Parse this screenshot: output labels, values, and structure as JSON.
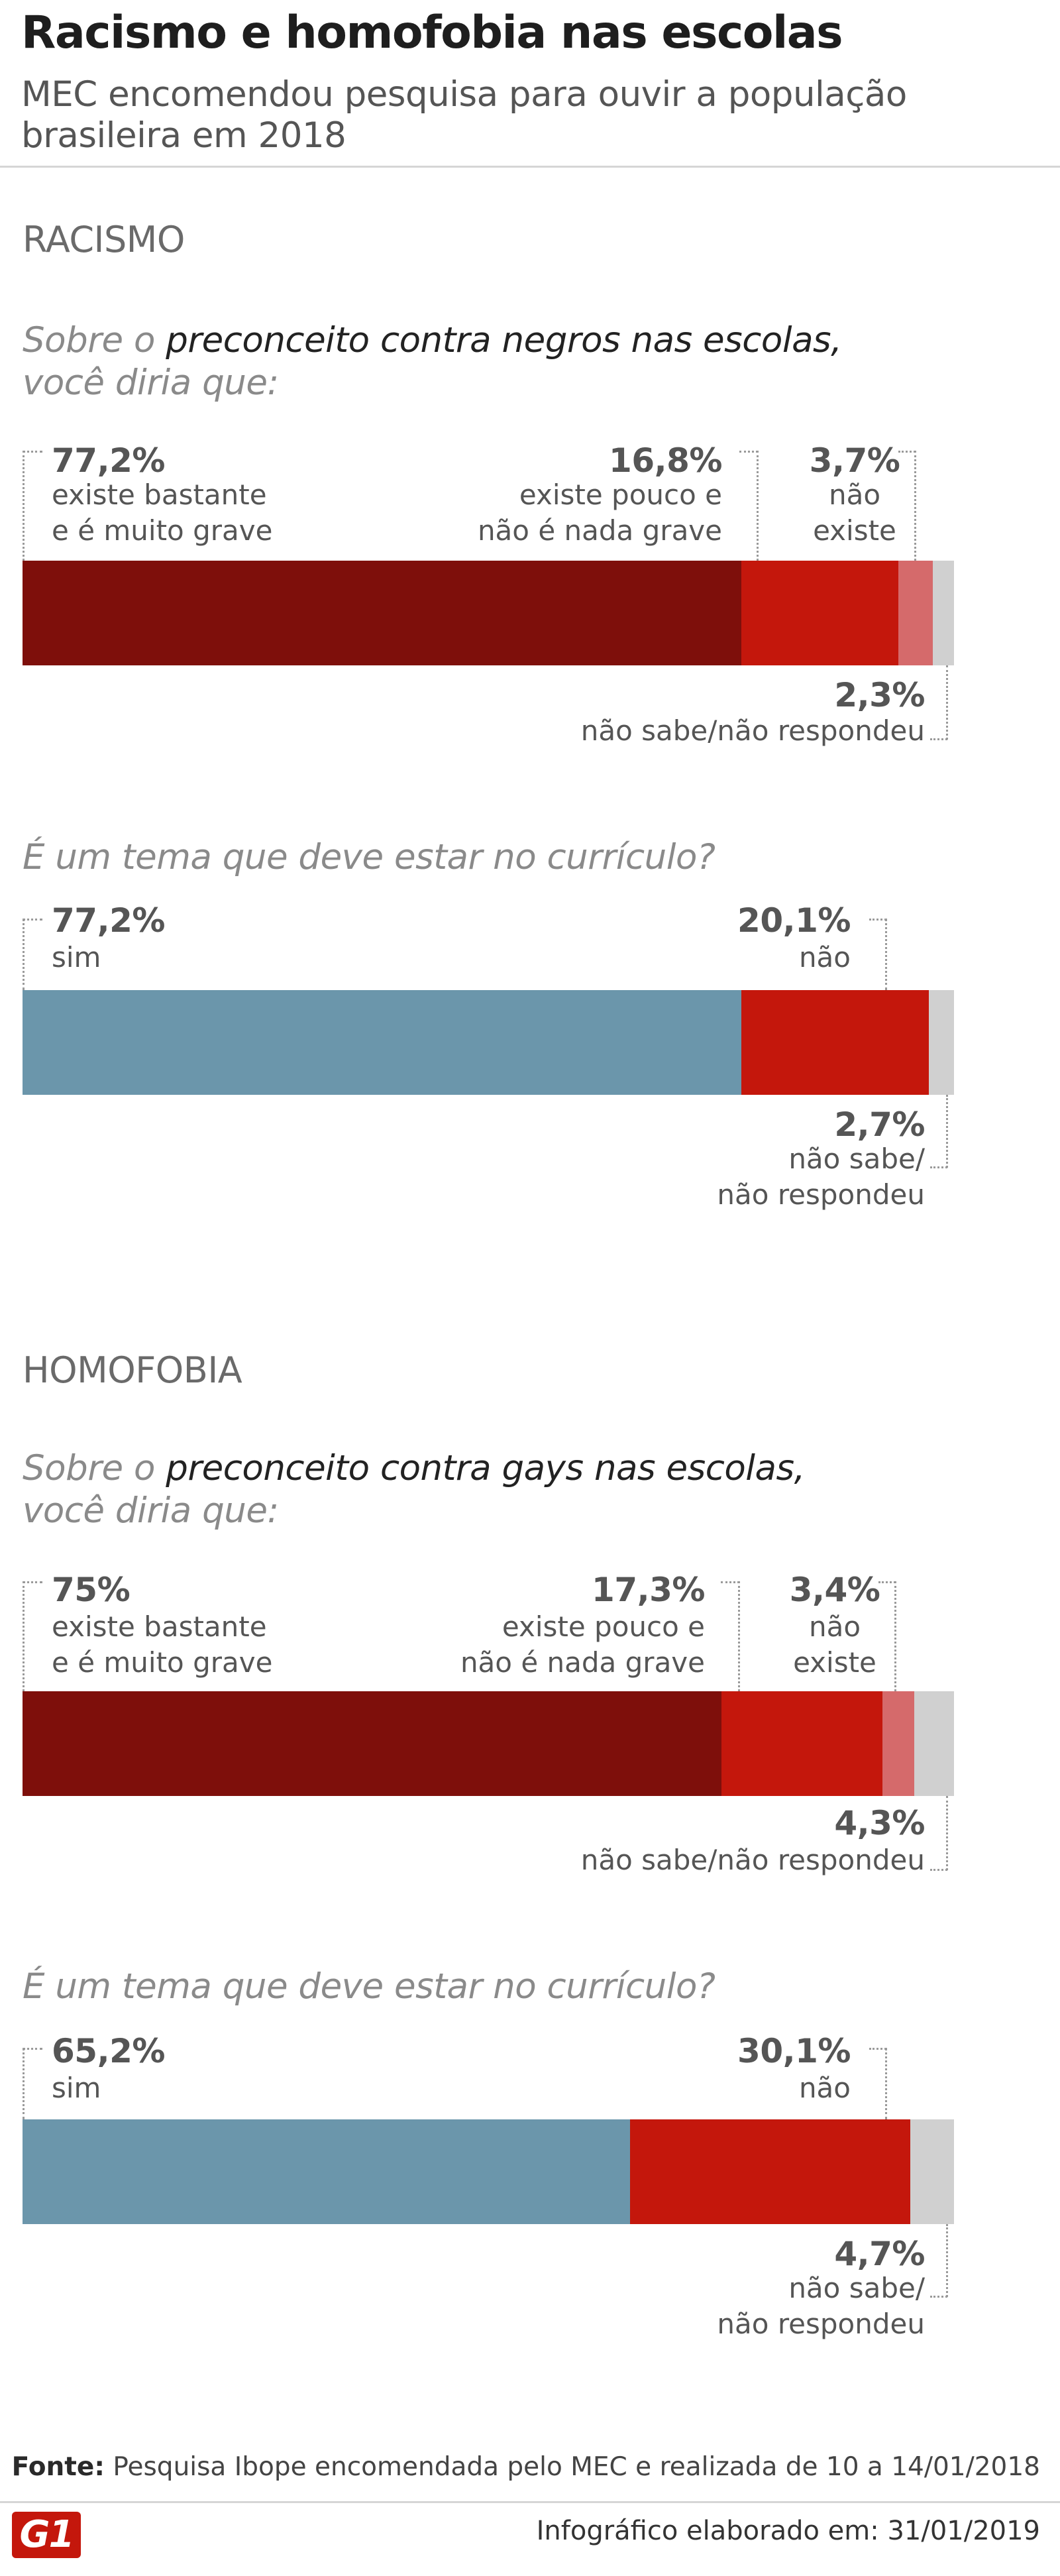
{
  "header": {
    "title": "Racismo e homofobia nas escolas",
    "subtitle": "MEC encomendou pesquisa para ouvir a população brasileira em 2018"
  },
  "colors": {
    "dark_red": "#7e0f0b",
    "red": "#c4170c",
    "pink": "#d56a6b",
    "grey": "#d0d0d0",
    "blue": "#6b96ab"
  },
  "chart_data": [
    {
      "type": "bar",
      "orientation": "horizontal-stacked-100",
      "section": "RACISMO",
      "question_pre": "Sobre o ",
      "question_bold": "preconceito contra negros nas escolas,",
      "question_post": "você diria que:",
      "segments": [
        {
          "pct": "77,2%",
          "value": 77.2,
          "l1": "existe bastante",
          "l2": "e é muito grave",
          "color": "#7e0f0b"
        },
        {
          "pct": "16,8%",
          "value": 16.8,
          "l1": "existe pouco e",
          "l2": "não é nada grave",
          "color": "#c4170c"
        },
        {
          "pct": "3,7%",
          "value": 3.7,
          "l1": "não",
          "l2": "existe",
          "color": "#d56a6b"
        },
        {
          "pct": "2,3%",
          "value": 2.3,
          "l1": "não sabe/não respondeu",
          "color": "#d0d0d0"
        }
      ]
    },
    {
      "type": "bar",
      "orientation": "horizontal-stacked-100",
      "question": "É um tema que deve estar no currículo?",
      "segments": [
        {
          "pct": "77,2%",
          "value": 77.2,
          "l1": "sim",
          "color": "#6b96ab"
        },
        {
          "pct": "20,1%",
          "value": 20.1,
          "l1": "não",
          "color": "#c4170c"
        },
        {
          "pct": "2,7%",
          "value": 2.7,
          "l1": "não sabe/",
          "l2": "não respondeu",
          "color": "#d0d0d0"
        }
      ]
    },
    {
      "type": "bar",
      "orientation": "horizontal-stacked-100",
      "section": "HOMOFOBIA",
      "question_pre": "Sobre o ",
      "question_bold": "preconceito contra gays nas escolas,",
      "question_post": "você diria que:",
      "segments": [
        {
          "pct": "75%",
          "value": 75,
          "l1": "existe bastante",
          "l2": "e é muito grave",
          "color": "#7e0f0b"
        },
        {
          "pct": "17,3%",
          "value": 17.3,
          "l1": "existe pouco e",
          "l2": "não é nada grave",
          "color": "#c4170c"
        },
        {
          "pct": "3,4%",
          "value": 3.4,
          "l1": "não",
          "l2": "existe",
          "color": "#d56a6b"
        },
        {
          "pct": "4,3%",
          "value": 4.3,
          "l1": "não sabe/não respondeu",
          "color": "#d0d0d0"
        }
      ]
    },
    {
      "type": "bar",
      "orientation": "horizontal-stacked-100",
      "question": "É um tema que deve estar no currículo?",
      "segments": [
        {
          "pct": "65,2%",
          "value": 65.2,
          "l1": "sim",
          "color": "#6b96ab"
        },
        {
          "pct": "30,1%",
          "value": 30.1,
          "l1": "não",
          "color": "#c4170c"
        },
        {
          "pct": "4,7%",
          "value": 4.7,
          "l1": "não sabe/",
          "l2": "não respondeu",
          "color": "#d0d0d0"
        }
      ]
    }
  ],
  "footer": {
    "source_label": "Fonte:",
    "source_text": " Pesquisa Ibope encomendada pelo MEC e realizada de 10 a 14/01/2018",
    "date_label": "Infográfico elaborado em:",
    "date_value": " 31/01/2019",
    "logo": "G1"
  }
}
